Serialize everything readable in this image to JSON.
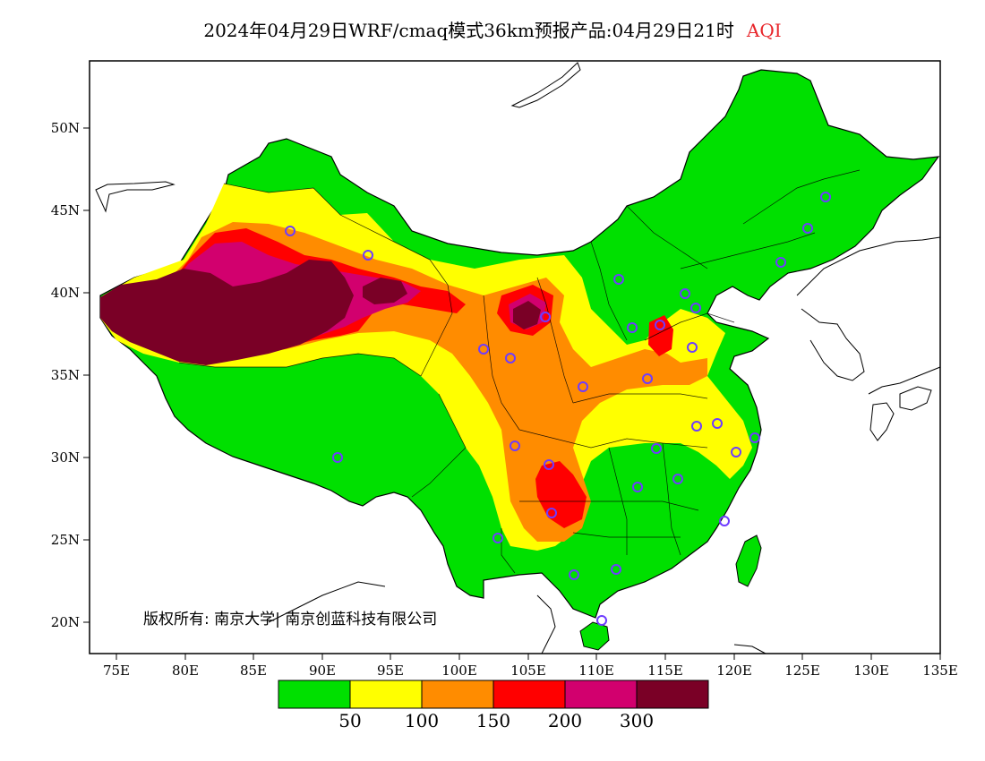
{
  "title": {
    "text": "2024年04月29日WRF/cmaq模式36km预报产品:04月29日21时",
    "variable": "AQI"
  },
  "map": {
    "lon_range": [
      73,
      135
    ],
    "lat_range": [
      18,
      54
    ],
    "lon_ticks": [
      "75E",
      "80E",
      "85E",
      "90E",
      "95E",
      "100E",
      "105E",
      "110E",
      "115E",
      "120E",
      "125E",
      "130E",
      "135E"
    ],
    "lat_ticks": [
      "20N",
      "25N",
      "30N",
      "35N",
      "40N",
      "45N",
      "50N"
    ],
    "copyright": "版权所有: 南京大学| 南京创蓝科技有限公司"
  },
  "legend": {
    "colors": [
      "#00e000",
      "#ffff00",
      "#ff8c00",
      "#ff0000",
      "#d2006e",
      "#7a0026"
    ],
    "labels": [
      "50",
      "100",
      "150",
      "200",
      "300"
    ]
  },
  "colors": {
    "good": "#00e000",
    "moderate": "#ffff00",
    "sensitive": "#ff8c00",
    "unhealthy": "#ff0000",
    "very_unhealthy": "#d2006e",
    "hazardous": "#7a0026",
    "station_marker": "#6e3cff"
  }
}
